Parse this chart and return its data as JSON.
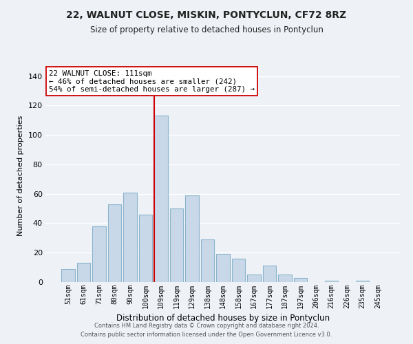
{
  "title": "22, WALNUT CLOSE, MISKIN, PONTYCLUN, CF72 8RZ",
  "subtitle": "Size of property relative to detached houses in Pontyclun",
  "xlabel": "Distribution of detached houses by size in Pontyclun",
  "ylabel": "Number of detached properties",
  "categories": [
    "51sqm",
    "61sqm",
    "71sqm",
    "80sqm",
    "90sqm",
    "100sqm",
    "109sqm",
    "119sqm",
    "129sqm",
    "138sqm",
    "148sqm",
    "158sqm",
    "167sqm",
    "177sqm",
    "187sqm",
    "197sqm",
    "206sqm",
    "216sqm",
    "226sqm",
    "235sqm",
    "245sqm"
  ],
  "values": [
    9,
    13,
    38,
    53,
    61,
    46,
    113,
    50,
    59,
    29,
    19,
    16,
    5,
    11,
    5,
    3,
    0,
    1,
    0,
    1,
    0
  ],
  "bar_color": "#c8d8e8",
  "bar_edge_color": "#8ab4cc",
  "highlight_line_color": "#cc0000",
  "highlight_bin_index": 6,
  "ylim": [
    0,
    145
  ],
  "yticks": [
    0,
    20,
    40,
    60,
    80,
    100,
    120,
    140
  ],
  "annotation_title": "22 WALNUT CLOSE: 111sqm",
  "annotation_line1": "← 46% of detached houses are smaller (242)",
  "annotation_line2": "54% of semi-detached houses are larger (287) →",
  "annotation_box_color": "#ffffff",
  "annotation_box_edge": "#cc0000",
  "footer_line1": "Contains HM Land Registry data © Crown copyright and database right 2024.",
  "footer_line2": "Contains public sector information licensed under the Open Government Licence v3.0.",
  "background_color": "#eef2f7",
  "grid_color": "#ffffff"
}
